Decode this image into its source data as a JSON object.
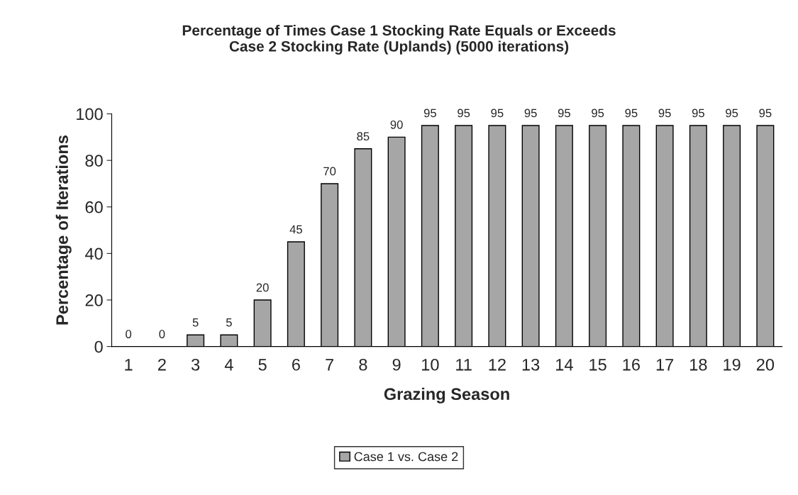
{
  "chart_data": {
    "type": "bar",
    "title": "Percentage of Times Case 1 Stocking Rate Equals or Exceeds\nCase 2 Stocking Rate (Uplands) (5000 iterations)",
    "xlabel": "Grazing Season",
    "ylabel": "Percentage of Iterations",
    "categories": [
      "1",
      "2",
      "3",
      "4",
      "5",
      "6",
      "7",
      "8",
      "9",
      "10",
      "11",
      "12",
      "13",
      "14",
      "15",
      "16",
      "17",
      "18",
      "19",
      "20"
    ],
    "series": [
      {
        "name": "Case 1 vs. Case 2",
        "color": "#a6a6a6",
        "values": [
          0,
          0,
          5,
          5,
          20,
          45,
          70,
          85,
          90,
          95,
          95,
          95,
          95,
          95,
          95,
          95,
          95,
          95,
          95,
          95
        ]
      }
    ],
    "ylim": [
      0,
      100
    ],
    "yticks": [
      0,
      20,
      40,
      60,
      80,
      100
    ],
    "grid": false,
    "data_labels": true,
    "legend": "bottom"
  }
}
